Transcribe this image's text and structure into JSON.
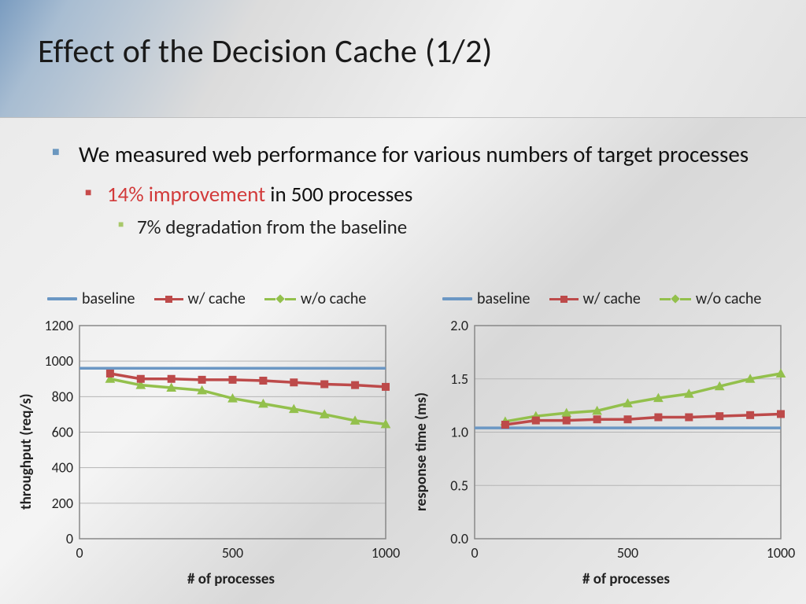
{
  "title": "Effect of the Decision Cache (1/2)",
  "bullets": {
    "b1": "We measured web performance for various numbers of target processes",
    "b2_hl": "14% improvement",
    "b2_rest": " in 500 processes",
    "b3": "7% degradation from the baseline"
  },
  "legend": {
    "baseline": "baseline",
    "w_cache": "w/ cache",
    "wo_cache": "w/o cache"
  },
  "colors": {
    "baseline": "#6b97c4",
    "w_cache": "#bd4a4a",
    "wo_cache": "#93c04c",
    "grid": "#b5b5b5",
    "plot_border": "#888888",
    "text": "#222222"
  },
  "chart_left": {
    "ylabel": "throughput (req/s)",
    "xlabel": "# of processes",
    "xlim": [
      0,
      1000
    ],
    "ylim": [
      0,
      1200
    ],
    "xticks": [
      0,
      500,
      1000
    ],
    "yticks": [
      0,
      200,
      400,
      600,
      800,
      1000,
      1200
    ],
    "line_width": 3.5,
    "marker_size": 9,
    "series": {
      "baseline": {
        "x": [
          0,
          1000
        ],
        "y": [
          960,
          960
        ]
      },
      "w_cache": {
        "x": [
          100,
          200,
          300,
          400,
          500,
          600,
          700,
          800,
          900,
          1000
        ],
        "y": [
          930,
          900,
          900,
          895,
          895,
          890,
          880,
          870,
          865,
          855
        ]
      },
      "wo_cache": {
        "x": [
          100,
          200,
          300,
          400,
          500,
          600,
          700,
          800,
          900,
          1000
        ],
        "y": [
          900,
          865,
          850,
          835,
          790,
          760,
          730,
          700,
          665,
          645
        ]
      }
    }
  },
  "chart_right": {
    "ylabel": "response time (ms)",
    "xlabel": "# of processes",
    "xlim": [
      0,
      1000
    ],
    "ylim": [
      0.0,
      2.0
    ],
    "xticks": [
      0,
      500,
      1000
    ],
    "yticks": [
      0.0,
      0.5,
      1.0,
      1.5,
      2.0
    ],
    "ytick_labels": [
      "0.0",
      "0.5",
      "1.0",
      "1.5",
      "2.0"
    ],
    "line_width": 3.5,
    "marker_size": 9,
    "series": {
      "baseline": {
        "x": [
          0,
          1000
        ],
        "y": [
          1.04,
          1.04
        ]
      },
      "w_cache": {
        "x": [
          100,
          200,
          300,
          400,
          500,
          600,
          700,
          800,
          900,
          1000
        ],
        "y": [
          1.07,
          1.11,
          1.11,
          1.12,
          1.12,
          1.14,
          1.14,
          1.15,
          1.16,
          1.17
        ]
      },
      "wo_cache": {
        "x": [
          100,
          200,
          300,
          400,
          500,
          600,
          700,
          800,
          900,
          1000
        ],
        "y": [
          1.1,
          1.15,
          1.18,
          1.2,
          1.27,
          1.32,
          1.36,
          1.43,
          1.5,
          1.55
        ]
      }
    }
  }
}
